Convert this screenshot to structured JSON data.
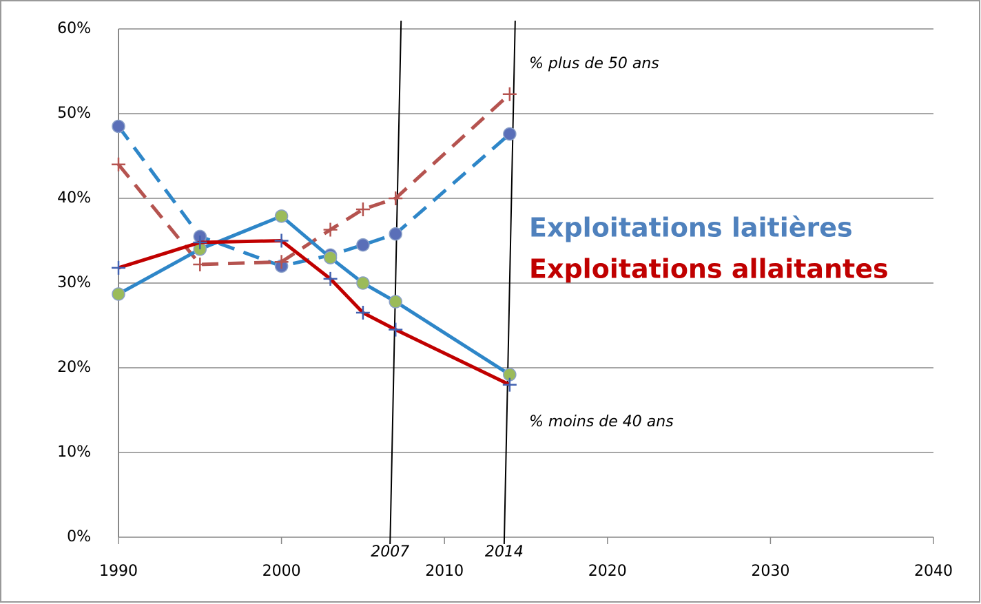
{
  "chart_data": {
    "type": "line",
    "x": [
      1990,
      1995,
      2000,
      2003,
      2005,
      2007,
      2014
    ],
    "series": [
      {
        "color": "#2e86c8",
        "dash": true,
        "marker": "circle",
        "marker_color": "#5a6fb8",
        "values": [
          48.5,
          35.5,
          32,
          33.3,
          34.5,
          35.8,
          47.6
        ]
      },
      {
        "color": "#b5534f",
        "dash": true,
        "marker": "plus",
        "marker_color": "#b5534f",
        "values": [
          44,
          32.2,
          32.5,
          36.3,
          38.7,
          40,
          52.3
        ]
      },
      {
        "color": "#2e86c8",
        "dash": false,
        "marker": "circle",
        "marker_color": "#9bbb59",
        "values": [
          28.7,
          34,
          37.9,
          33,
          30,
          27.8,
          19.2
        ]
      },
      {
        "color": "#c00000",
        "dash": false,
        "marker": "plus",
        "marker_color": "#4060b0",
        "values": [
          31.8,
          34.8,
          35,
          30.5,
          26.5,
          24.5,
          18
        ]
      }
    ],
    "xlim": [
      1990,
      2040
    ],
    "xticks": [
      1990,
      2000,
      2010,
      2020,
      2030,
      2040
    ],
    "ylim": [
      0,
      60
    ],
    "yticks": [
      {
        "value": 0,
        "label": "0%"
      },
      {
        "value": 10,
        "label": "10%"
      },
      {
        "value": 20,
        "label": "20%"
      },
      {
        "value": 30,
        "label": "30%"
      },
      {
        "value": 40,
        "label": "40%"
      },
      {
        "value": 50,
        "label": "50%"
      },
      {
        "value": 60,
        "label": "60%"
      }
    ],
    "grid": true,
    "markers": [
      2007,
      2014
    ],
    "annotations": [
      "% plus de 50 ans",
      "% moins de 40 ans"
    ],
    "legend": [
      {
        "name": "Exploitations laitières",
        "color": "#4f81bd"
      },
      {
        "name": "Exploitations allaitantes",
        "color": "#c00000"
      }
    ]
  }
}
